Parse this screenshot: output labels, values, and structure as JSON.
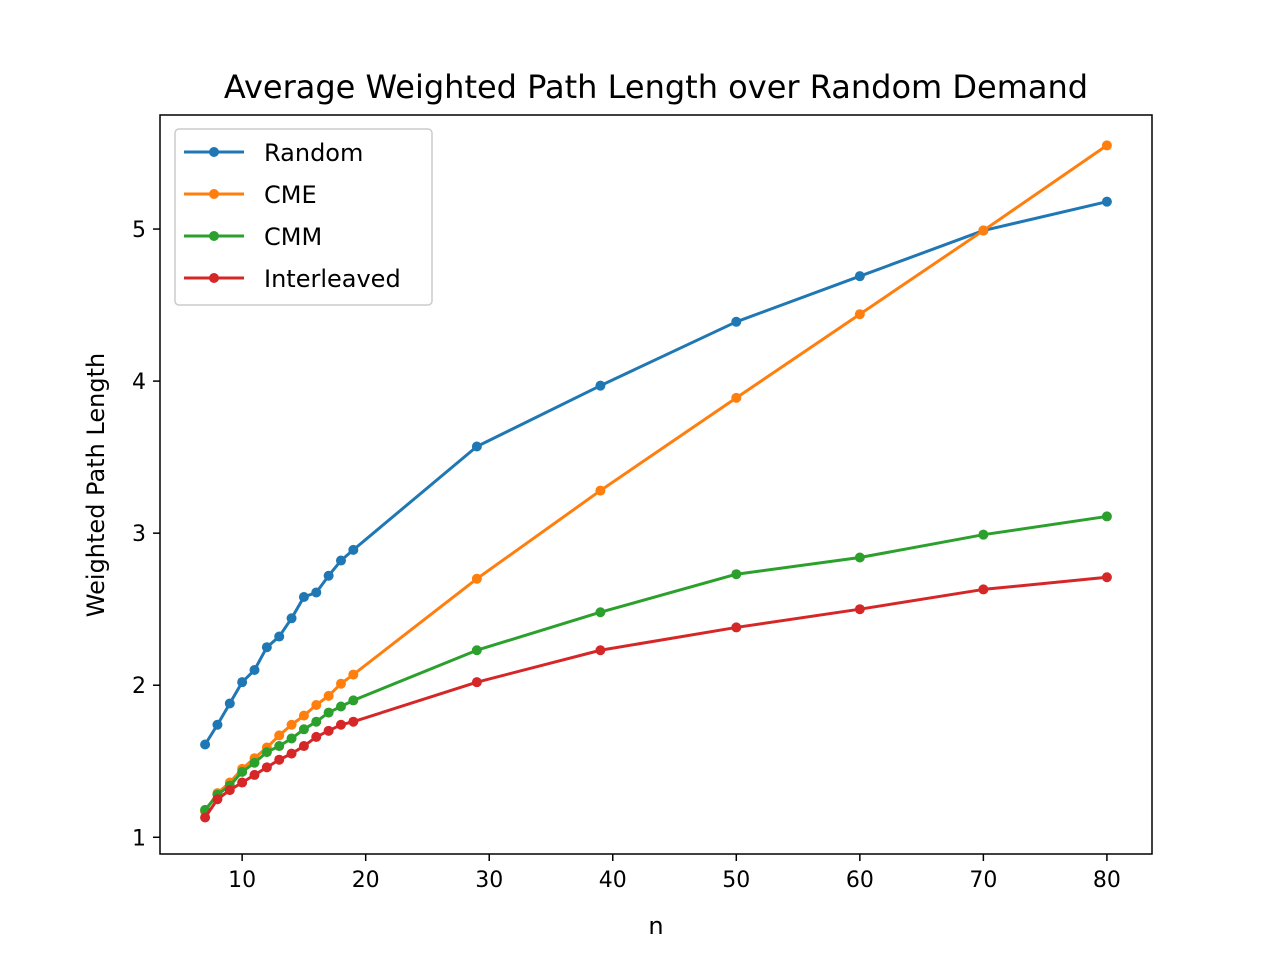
{
  "chart_data": {
    "type": "line",
    "title": "Average Weighted Path Length over Random Demand",
    "xlabel": "n",
    "ylabel": "Weighted Path Length",
    "xlim": [
      3.35,
      83.65
    ],
    "ylim": [
      0.89,
      5.75
    ],
    "xticks": [
      10,
      20,
      30,
      40,
      50,
      60,
      70,
      80
    ],
    "yticks": [
      1,
      2,
      3,
      4,
      5
    ],
    "grid": false,
    "legend_position": "upper-left",
    "series": [
      {
        "name": "Random",
        "color": "#1f77b4",
        "x": [
          7,
          8,
          9,
          10,
          11,
          12,
          13,
          14,
          15,
          16,
          17,
          18,
          19,
          29,
          39,
          50,
          60,
          70,
          80
        ],
        "y": [
          1.61,
          1.74,
          1.88,
          2.02,
          2.1,
          2.25,
          2.32,
          2.44,
          2.58,
          2.61,
          2.72,
          2.82,
          2.89,
          3.57,
          3.97,
          4.39,
          4.69,
          4.99,
          5.18
        ]
      },
      {
        "name": "CME",
        "color": "#ff7f0e",
        "x": [
          7,
          8,
          9,
          10,
          11,
          12,
          13,
          14,
          15,
          16,
          17,
          18,
          19,
          29,
          39,
          50,
          60,
          70,
          80
        ],
        "y": [
          1.17,
          1.29,
          1.36,
          1.45,
          1.52,
          1.59,
          1.67,
          1.74,
          1.8,
          1.87,
          1.93,
          2.01,
          2.07,
          2.7,
          3.28,
          3.89,
          4.44,
          4.99,
          5.55
        ]
      },
      {
        "name": "CMM",
        "color": "#2ca02c",
        "x": [
          7,
          8,
          9,
          10,
          11,
          12,
          13,
          14,
          15,
          16,
          17,
          18,
          19,
          29,
          39,
          50,
          60,
          70,
          80
        ],
        "y": [
          1.18,
          1.28,
          1.34,
          1.43,
          1.49,
          1.56,
          1.6,
          1.65,
          1.71,
          1.76,
          1.82,
          1.86,
          1.9,
          2.23,
          2.48,
          2.73,
          2.84,
          2.99,
          3.11
        ]
      },
      {
        "name": "Interleaved",
        "color": "#d62728",
        "x": [
          7,
          8,
          9,
          10,
          11,
          12,
          13,
          14,
          15,
          16,
          17,
          18,
          19,
          29,
          39,
          50,
          60,
          70,
          80
        ],
        "y": [
          1.13,
          1.25,
          1.31,
          1.36,
          1.41,
          1.46,
          1.51,
          1.55,
          1.6,
          1.66,
          1.7,
          1.74,
          1.76,
          2.02,
          2.23,
          2.38,
          2.5,
          2.63,
          2.71
        ]
      }
    ]
  }
}
